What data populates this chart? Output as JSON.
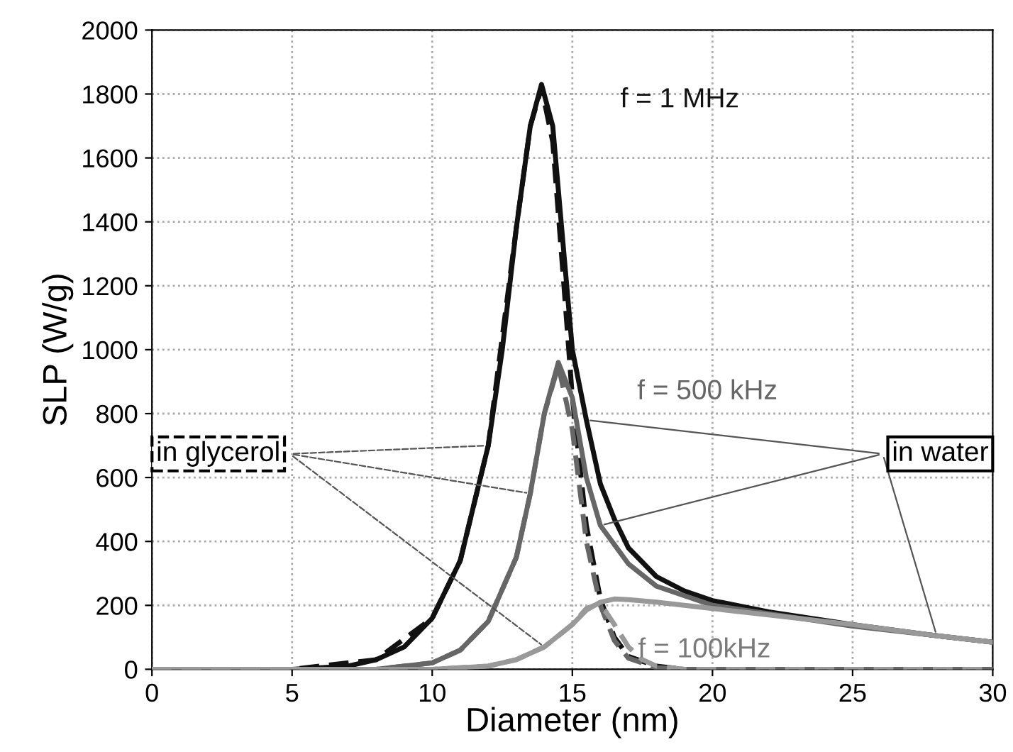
{
  "chart_data": {
    "type": "line",
    "xlabel": "Diameter (nm)",
    "ylabel": "SLP (W/g)",
    "xlim": [
      0,
      30
    ],
    "xticks": [
      0,
      5,
      10,
      15,
      20,
      25,
      30
    ],
    "ylim": [
      0,
      2000
    ],
    "yticks": [
      0,
      200,
      400,
      600,
      800,
      1000,
      1200,
      1400,
      1600,
      1800,
      2000
    ],
    "grid": true,
    "legend": false,
    "series": [
      {
        "color": "#111111",
        "line_style": "solid",
        "x": [
          0,
          5,
          7,
          8,
          9,
          10,
          11,
          12,
          12.5,
          13,
          13.5,
          13.9,
          14.3,
          14.7,
          15,
          15.5,
          16,
          16.5,
          17,
          18,
          19,
          20,
          22,
          25,
          28,
          30
        ],
        "values": [
          0,
          0,
          10,
          30,
          70,
          160,
          340,
          700,
          1000,
          1380,
          1700,
          1830,
          1700,
          1300,
          1000,
          780,
          580,
          470,
          380,
          290,
          245,
          215,
          180,
          140,
          105,
          85
        ]
      },
      {
        "color": "#111111",
        "line_style": "dashed",
        "x": [
          0,
          5,
          8,
          10,
          11,
          12,
          13,
          13.5,
          13.9,
          14.3,
          14.7,
          15,
          15.5,
          16,
          16.5,
          17,
          18,
          19,
          30
        ],
        "values": [
          0,
          0,
          30,
          160,
          340,
          700,
          1380,
          1700,
          1820,
          1650,
          1200,
          850,
          450,
          220,
          100,
          40,
          10,
          0,
          0
        ]
      },
      {
        "color": "#666666",
        "line_style": "solid",
        "x": [
          0,
          8,
          10,
          11,
          12,
          13,
          13.5,
          14,
          14.5,
          15,
          15.5,
          16,
          17,
          18,
          20,
          25,
          30
        ],
        "values": [
          0,
          0,
          20,
          60,
          150,
          350,
          550,
          800,
          960,
          850,
          600,
          450,
          330,
          260,
          200,
          135,
          85
        ]
      },
      {
        "color": "#666666",
        "line_style": "dashed",
        "x": [
          0,
          8,
          10,
          11,
          12,
          13,
          13.5,
          14,
          14.5,
          15,
          15.5,
          16,
          16.5,
          17,
          18,
          19,
          30
        ],
        "values": [
          0,
          0,
          20,
          60,
          150,
          350,
          550,
          800,
          950,
          750,
          400,
          200,
          90,
          35,
          5,
          0,
          0
        ]
      },
      {
        "color": "#999999",
        "line_style": "solid",
        "x": [
          0,
          10,
          12,
          13,
          14,
          15,
          15.5,
          16,
          16.5,
          17,
          18,
          20,
          22,
          25,
          28,
          30
        ],
        "values": [
          0,
          0,
          10,
          30,
          70,
          140,
          185,
          210,
          220,
          218,
          210,
          190,
          170,
          140,
          105,
          85
        ]
      },
      {
        "color": "#999999",
        "line_style": "dashed",
        "x": [
          0,
          10,
          12,
          13,
          14,
          15,
          15.5,
          15.8,
          16.2,
          16.5,
          17,
          17.5,
          18,
          19,
          30
        ],
        "values": [
          0,
          0,
          10,
          30,
          70,
          140,
          190,
          200,
          180,
          140,
          70,
          30,
          10,
          0,
          0
        ]
      }
    ],
    "annotations": [
      "f = 1 MHz",
      "f = 500 kHz",
      "f = 100kHz",
      {
        "text": "in glycerol",
        "x": 12,
        "y": 700
      },
      {
        "text": "in water",
        "x": 15.5,
        "y": 780
      }
    ]
  }
}
